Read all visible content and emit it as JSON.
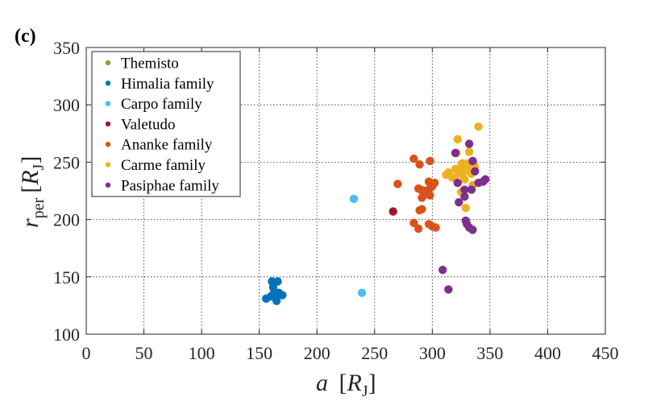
{
  "chart_data": {
    "type": "scatter",
    "panel_label": "(c)",
    "xlabel": {
      "main": "a",
      "open": "[",
      "sym": "R",
      "sub": "J",
      "close": "]"
    },
    "ylabel": {
      "main": "r",
      "sub": "per",
      "open": "[",
      "sym": "R",
      "sub2": "J",
      "close": "]"
    },
    "xlim": [
      0,
      450
    ],
    "ylim": [
      100,
      350
    ],
    "xticks": [
      0,
      50,
      100,
      150,
      200,
      250,
      300,
      350,
      400,
      450
    ],
    "yticks": [
      100,
      150,
      200,
      250,
      300,
      350
    ],
    "grid": true,
    "legend_position": "top-left",
    "series": [
      {
        "name": "Themisto",
        "color": "#77ac30",
        "points": []
      },
      {
        "name": "Himalia family",
        "color": "#0072bd",
        "points": [
          [
            156,
            131
          ],
          [
            160,
            133
          ],
          [
            161,
            146
          ],
          [
            162,
            141
          ],
          [
            163,
            137
          ],
          [
            164,
            132
          ],
          [
            165,
            129
          ],
          [
            166,
            146
          ],
          [
            167,
            136
          ],
          [
            170,
            134
          ]
        ]
      },
      {
        "name": "Carpo family",
        "color": "#4dbeee",
        "points": [
          [
            232,
            218
          ],
          [
            239,
            136
          ]
        ]
      },
      {
        "name": "Valetudo",
        "color": "#a2142f",
        "points": [
          [
            266,
            207
          ]
        ]
      },
      {
        "name": "Ananke family",
        "color": "#d95319",
        "points": [
          [
            270,
            231
          ],
          [
            284,
            253
          ],
          [
            284,
            197
          ],
          [
            288,
            192
          ],
          [
            288,
            227
          ],
          [
            289,
            208
          ],
          [
            289,
            248
          ],
          [
            290,
            226
          ],
          [
            291,
            209
          ],
          [
            291,
            219
          ],
          [
            292,
            225
          ],
          [
            293,
            225
          ],
          [
            295,
            222
          ],
          [
            297,
            233
          ],
          [
            297,
            196
          ],
          [
            297,
            226
          ],
          [
            298,
            251
          ],
          [
            298,
            232
          ],
          [
            298,
            221
          ],
          [
            300,
            229
          ],
          [
            300,
            194
          ],
          [
            302,
            232
          ],
          [
            303,
            193
          ]
        ]
      },
      {
        "name": "Carme family",
        "color": "#edb120",
        "points": [
          [
            312,
            239
          ],
          [
            314,
            241
          ],
          [
            317,
            237
          ],
          [
            319,
            236
          ],
          [
            320,
            244
          ],
          [
            321,
            258
          ],
          [
            322,
            270
          ],
          [
            322,
            232
          ],
          [
            323,
            240
          ],
          [
            324,
            245
          ],
          [
            325,
            224
          ],
          [
            326,
            249
          ],
          [
            326,
            239
          ],
          [
            327,
            243
          ],
          [
            328,
            235
          ],
          [
            328,
            248
          ],
          [
            329,
            210
          ],
          [
            330,
            243
          ],
          [
            331,
            249
          ],
          [
            332,
            259
          ],
          [
            333,
            248
          ],
          [
            334,
            240
          ],
          [
            335,
            230
          ],
          [
            337,
            246
          ],
          [
            340,
            281
          ]
        ]
      },
      {
        "name": "Pasiphae family",
        "color": "#7e2f8e",
        "points": [
          [
            309,
            156
          ],
          [
            314,
            139
          ],
          [
            320,
            258
          ],
          [
            322,
            232
          ],
          [
            323,
            215
          ],
          [
            328,
            226
          ],
          [
            328,
            220
          ],
          [
            329,
            199
          ],
          [
            330,
            196
          ],
          [
            332,
            193
          ],
          [
            332,
            266
          ],
          [
            334,
            226
          ],
          [
            335,
            191
          ],
          [
            335,
            251
          ],
          [
            337,
            242
          ],
          [
            340,
            232
          ],
          [
            344,
            233
          ],
          [
            346,
            235
          ]
        ]
      }
    ]
  }
}
